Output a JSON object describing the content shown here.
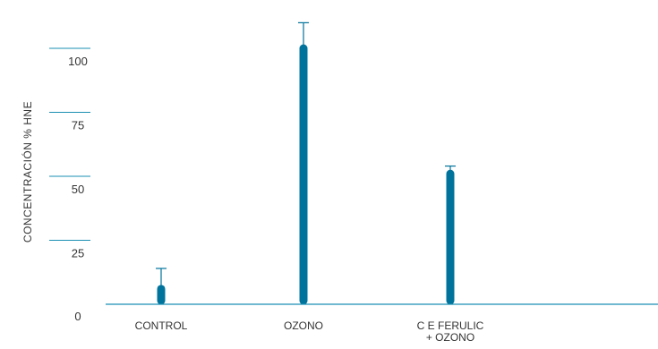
{
  "chart_data": {
    "type": "bar",
    "title": "",
    "xlabel": "",
    "ylabel": "CONCENTRACIÓN % HNE",
    "ylim": [
      0,
      110
    ],
    "yticks": [
      0,
      25,
      50,
      75,
      100
    ],
    "categories": [
      [
        "CONTROL"
      ],
      [
        "OZONO"
      ],
      [
        "C E FERULIC",
        "+ OZONO"
      ]
    ],
    "values": [
      6,
      100,
      51
    ],
    "error_upper": [
      14,
      110,
      54
    ],
    "bar_color": "#00739c",
    "axis_color": "#1a8fb3",
    "grid": false
  }
}
